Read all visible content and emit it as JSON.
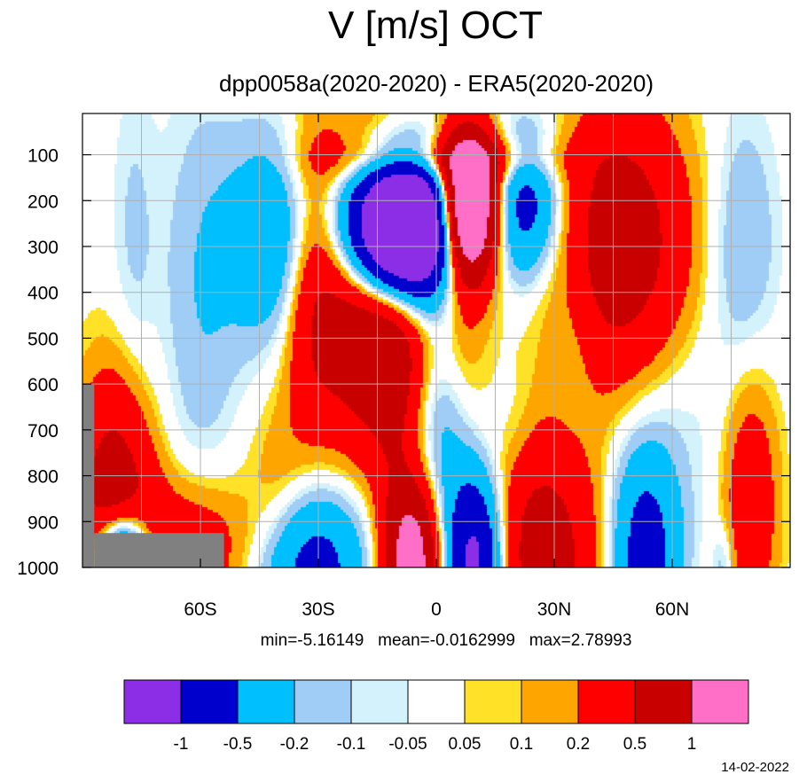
{
  "chart_data": {
    "type": "heatmap",
    "title": "V [m/s] OCT",
    "subtitle": "dpp0058a(2020-2020) - ERA5(2020-2020)",
    "stats": "min=-5.16149   mean=-0.0162999   max=2.78993",
    "date": "14-02-2022",
    "xlim": [
      -90,
      90
    ],
    "ylim": [
      1000,
      10
    ],
    "y_reversed": true,
    "x_ticks": [
      {
        "value": -60,
        "label": "60S"
      },
      {
        "value": -30,
        "label": "30S"
      },
      {
        "value": 0,
        "label": "0"
      },
      {
        "value": 30,
        "label": "30N"
      },
      {
        "value": 60,
        "label": "60N"
      }
    ],
    "y_ticks": [
      {
        "value": 100,
        "label": "100"
      },
      {
        "value": 200,
        "label": "200"
      },
      {
        "value": 300,
        "label": "300"
      },
      {
        "value": 400,
        "label": "400"
      },
      {
        "value": 500,
        "label": "500"
      },
      {
        "value": 600,
        "label": "600"
      },
      {
        "value": 700,
        "label": "700"
      },
      {
        "value": 800,
        "label": "800"
      },
      {
        "value": 900,
        "label": "900"
      },
      {
        "value": 1000,
        "label": "1000"
      }
    ],
    "grid": true,
    "levels": [
      -1,
      -0.5,
      -0.2,
      -0.1,
      -0.05,
      0.05,
      0.1,
      0.2,
      0.5,
      1
    ],
    "level_labels": [
      "-1",
      "-0.5",
      "-0.2",
      "-0.1",
      "-0.05",
      "0.05",
      "0.1",
      "0.2",
      "0.5",
      "1"
    ],
    "colors": [
      "#8c2ee6",
      "#0000cd",
      "#00bfff",
      "#a0cdf6",
      "#d4f2fc",
      "#ffffff",
      "#ffe128",
      "#ffa500",
      "#ff0000",
      "#c80000",
      "#ff6ec7"
    ],
    "missing_color": "#808080",
    "missing_regions": [
      {
        "lat": [
          -90,
          -87
        ],
        "p": [
          600,
          1000
        ]
      },
      {
        "lat": [
          -87,
          -54
        ],
        "p": [
          925,
          1000
        ]
      }
    ],
    "features": [
      {
        "lat": -9,
        "p": 260,
        "sx": 10,
        "sp": 110,
        "amp": -3.2
      },
      {
        "lat": -40,
        "p": 290,
        "sx": 9,
        "sp": 160,
        "amp": -0.55
      },
      {
        "lat": -60,
        "p": 420,
        "sx": 7,
        "sp": 320,
        "amp": -0.18
      },
      {
        "lat": -77,
        "p": 300,
        "sx": 4,
        "sp": 260,
        "amp": -0.12
      },
      {
        "lat": -16,
        "p": 380,
        "sx": 12,
        "sp": 230,
        "amp": 1.1
      },
      {
        "lat": -32,
        "p": 350,
        "sx": 5,
        "sp": 220,
        "amp": 0.35
      },
      {
        "lat": -10,
        "p": 650,
        "sx": 5,
        "sp": 190,
        "amp": 0.25
      },
      {
        "lat": 8,
        "p": 220,
        "sx": 5,
        "sp": 110,
        "amp": 2.4
      },
      {
        "lat": 2,
        "p": 110,
        "sx": 18,
        "sp": 35,
        "amp": 0.45
      },
      {
        "lat": 23,
        "p": 210,
        "sx": 6,
        "sp": 110,
        "amp": -0.7
      },
      {
        "lat": 47,
        "p": 300,
        "sx": 12,
        "sp": 210,
        "amp": 0.75
      },
      {
        "lat": 35,
        "p": 450,
        "sx": 4,
        "sp": 170,
        "amp": -0.12
      },
      {
        "lat": 78,
        "p": 300,
        "sx": 6,
        "sp": 200,
        "amp": -0.22
      },
      {
        "lat": 0,
        "p": 700,
        "sx": 6,
        "sp": 230,
        "amp": -0.4
      },
      {
        "lat": 7,
        "p": 520,
        "sx": 4,
        "sp": 140,
        "amp": 0.12
      },
      {
        "lat": -82,
        "p": 900,
        "sx": 7,
        "sp": 210,
        "amp": 0.8
      },
      {
        "lat": -80,
        "p": 980,
        "sx": 5,
        "sp": 70,
        "amp": -1.5
      },
      {
        "lat": -62,
        "p": 960,
        "sx": 12,
        "sp": 110,
        "amp": 0.4
      },
      {
        "lat": -32,
        "p": 995,
        "sx": 10,
        "sp": 120,
        "amp": -0.7
      },
      {
        "lat": -40,
        "p": 860,
        "sx": 6,
        "sp": 140,
        "amp": 0.2
      },
      {
        "lat": -6,
        "p": 980,
        "sx": 5,
        "sp": 120,
        "amp": 1.4
      },
      {
        "lat": 10,
        "p": 985,
        "sx": 5,
        "sp": 130,
        "amp": -1.2
      },
      {
        "lat": 27,
        "p": 970,
        "sx": 10,
        "sp": 180,
        "amp": 0.7
      },
      {
        "lat": 20,
        "p": 700,
        "sx": 4,
        "sp": 90,
        "amp": -0.08
      },
      {
        "lat": 53,
        "p": 970,
        "sx": 6,
        "sp": 160,
        "amp": -0.7
      },
      {
        "lat": 60,
        "p": 640,
        "sx": 10,
        "sp": 200,
        "amp": -0.1
      },
      {
        "lat": 80,
        "p": 860,
        "sx": 5,
        "sp": 200,
        "amp": 0.4
      },
      {
        "lat": 73,
        "p": 995,
        "sx": 2,
        "sp": 60,
        "amp": -0.2
      }
    ]
  }
}
